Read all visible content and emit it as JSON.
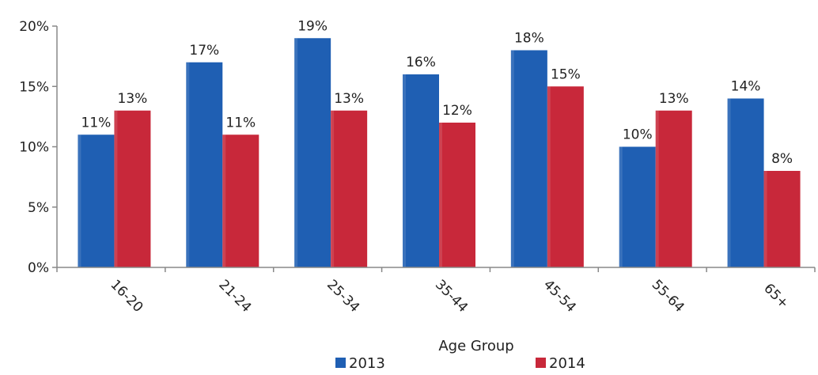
{
  "chart_data": {
    "type": "bar",
    "categories": [
      "16-20",
      "21-24",
      "25-34",
      "35-44",
      "45-54",
      "55-64",
      "65+"
    ],
    "series": [
      {
        "name": "2013",
        "values": [
          11,
          17,
          19,
          16,
          18,
          10,
          14
        ],
        "labels": [
          "11%",
          "17%",
          "19%",
          "16%",
          "18%",
          "10%",
          "14%"
        ],
        "color": "#1f5fb3"
      },
      {
        "name": "2014",
        "values": [
          13,
          11,
          13,
          12,
          15,
          13,
          8
        ],
        "labels": [
          "13%",
          "11%",
          "13%",
          "12%",
          "15%",
          "13%",
          "8%"
        ],
        "color": "#c8283a"
      }
    ],
    "xlabel": "Age Group",
    "ylabel": "",
    "ylim": [
      0,
      20
    ],
    "yticks": [
      0,
      5,
      10,
      15,
      20
    ],
    "ytick_labels": [
      "0%",
      "5%",
      "10%",
      "15%",
      "20%"
    ],
    "grid": false,
    "legend_position": "bottom"
  }
}
